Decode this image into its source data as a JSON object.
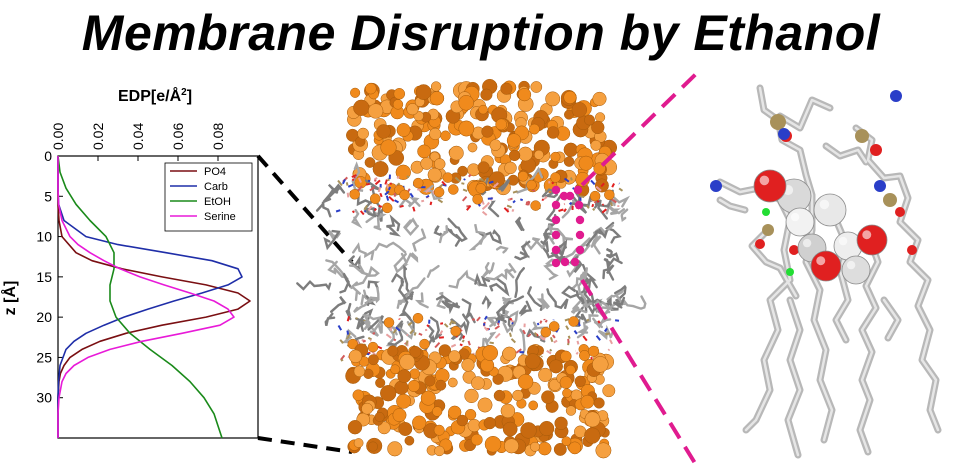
{
  "title": "Membrane Disruption by Ethanol",
  "chart_data": {
    "type": "line",
    "orientation": "rotated (density on top axis, depth on left axis)",
    "xlabel": "EDP[e/Å",
    "xlabel_sup": "2",
    "xlabel_tail": "]",
    "ylabel": "z [Å]",
    "xlim": [
      0,
      0.1
    ],
    "ylim": [
      0,
      35
    ],
    "xticks": [
      "0.00",
      "0.02",
      "0.04",
      "0.06",
      "0.08"
    ],
    "yticks": [
      "0",
      "5",
      "10",
      "15",
      "20",
      "25",
      "30"
    ],
    "legend_position": "top-right",
    "series": [
      {
        "name": "PO4",
        "color": "#7a0f12",
        "z": [
          0,
          2,
          4,
          6,
          8,
          10,
          12,
          13,
          14,
          15,
          16,
          17,
          18,
          19,
          20,
          21,
          22,
          23,
          24,
          25,
          26,
          27,
          28,
          30,
          32,
          35
        ],
        "edp": [
          0,
          0,
          0,
          0,
          0.0005,
          0.002,
          0.009,
          0.017,
          0.032,
          0.052,
          0.074,
          0.09,
          0.096,
          0.09,
          0.074,
          0.052,
          0.034,
          0.021,
          0.012,
          0.006,
          0.003,
          0.0012,
          0.0005,
          0,
          0,
          0
        ]
      },
      {
        "name": "Carb",
        "color": "#1f2ea8",
        "z": [
          0,
          2,
          4,
          6,
          8,
          10,
          11,
          12,
          13,
          14,
          15,
          16,
          17,
          18,
          19,
          20,
          21,
          22,
          23,
          24,
          26,
          28,
          30,
          32,
          35
        ],
        "edp": [
          0,
          0,
          0,
          0.0003,
          0.003,
          0.014,
          0.03,
          0.054,
          0.077,
          0.09,
          0.092,
          0.085,
          0.072,
          0.058,
          0.045,
          0.033,
          0.023,
          0.014,
          0.008,
          0.004,
          0.001,
          0.0003,
          0,
          0,
          0
        ]
      },
      {
        "name": "EtOH",
        "color": "#1a8a1a",
        "z": [
          0,
          2,
          4,
          6,
          8,
          10,
          12,
          14,
          15,
          16,
          18,
          20,
          22,
          24,
          26,
          28,
          30,
          32,
          35
        ],
        "edp": [
          0,
          0.001,
          0.004,
          0.009,
          0.016,
          0.024,
          0.028,
          0.028,
          0.027,
          0.026,
          0.026,
          0.029,
          0.036,
          0.046,
          0.057,
          0.066,
          0.073,
          0.078,
          0.082
        ]
      },
      {
        "name": "Serine",
        "color": "#e81ad8",
        "z": [
          0,
          2,
          4,
          6,
          8,
          10,
          11,
          12,
          13,
          14,
          15,
          16,
          17,
          18,
          19,
          20,
          21,
          22,
          23,
          24,
          25,
          26,
          27,
          28,
          30,
          32,
          35
        ],
        "edp": [
          0,
          0,
          0,
          0.0003,
          0.002,
          0.006,
          0.01,
          0.016,
          0.023,
          0.031,
          0.041,
          0.053,
          0.066,
          0.078,
          0.085,
          0.088,
          0.081,
          0.062,
          0.042,
          0.026,
          0.015,
          0.008,
          0.004,
          0.002,
          0.0005,
          0,
          0
        ]
      }
    ]
  },
  "colors": {
    "lipid_gray": "#8f8f8f",
    "water_orange": "#f08a1c",
    "magenta_dash": "#e01b8f",
    "oxygen_red": "#e02020",
    "nitrogen_blue": "#2a3ec8",
    "phosphorus_tan": "#a8915a",
    "hbond_green": "#22dd33"
  }
}
